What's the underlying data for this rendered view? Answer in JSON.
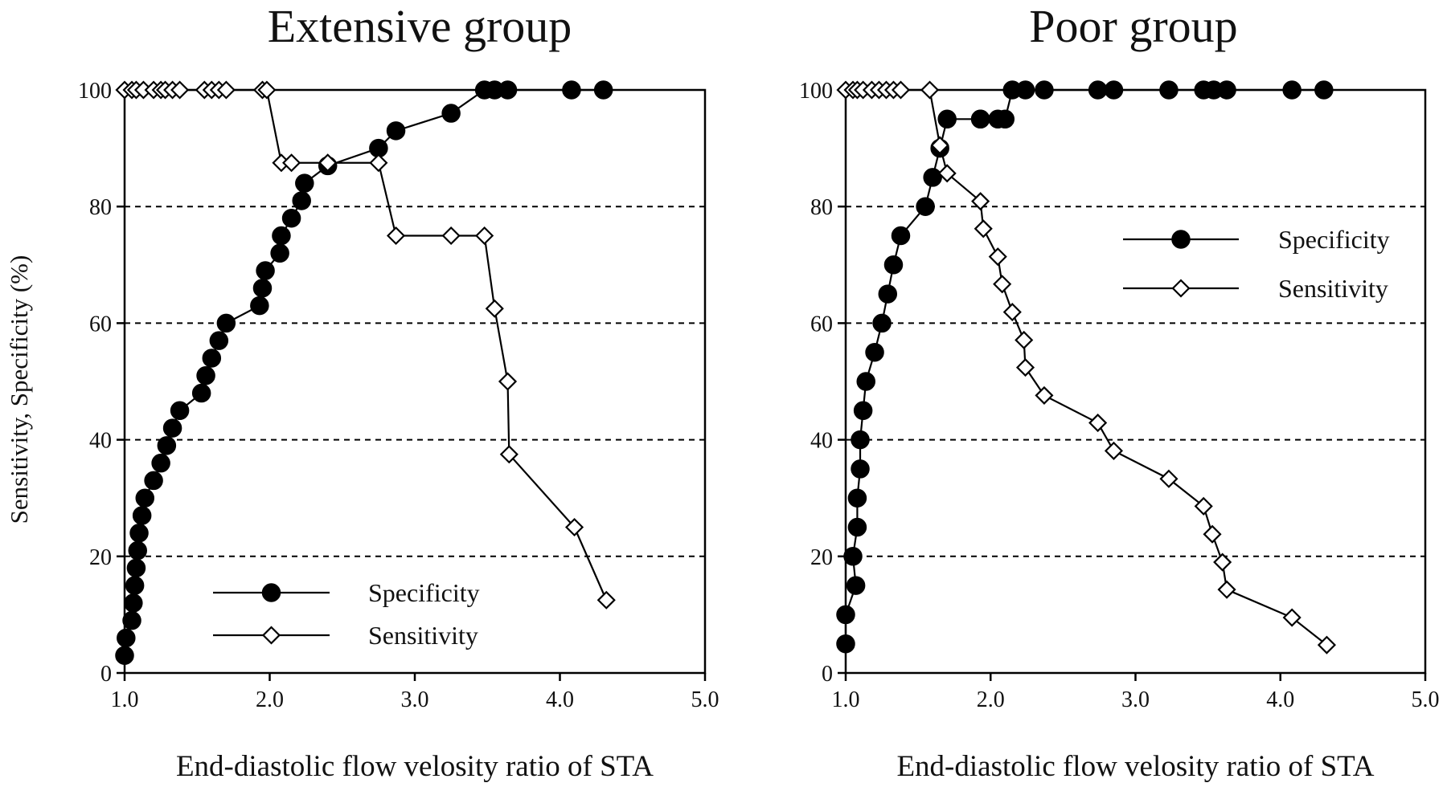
{
  "chart_data": [
    {
      "type": "line",
      "title": "Extensive group",
      "xlabel": "End-diastolic flow velosity ratio of STA",
      "ylabel": "Sensitivity, Specificity (%)",
      "xlim": [
        1.0,
        5.0
      ],
      "ylim": [
        0,
        100
      ],
      "x_ticks": [
        "1.0",
        "2.0",
        "3.0",
        "4.0",
        "5.0"
      ],
      "y_ticks": [
        "0",
        "20",
        "40",
        "60",
        "80",
        "100"
      ],
      "grid": "horizontal dashed at 20, 40, 60, 80",
      "legend": {
        "position": "bottom-center",
        "items": [
          "Specificity",
          "Sensitivity"
        ]
      },
      "series": [
        {
          "name": "Specificity",
          "marker": "filled-circle",
          "x": [
            1.0,
            1.01,
            1.05,
            1.06,
            1.07,
            1.08,
            1.09,
            1.1,
            1.12,
            1.14,
            1.2,
            1.25,
            1.29,
            1.33,
            1.38,
            1.53,
            1.56,
            1.6,
            1.65,
            1.7,
            1.93,
            1.95,
            1.97,
            2.07,
            2.08,
            2.15,
            2.22,
            2.24,
            2.4,
            2.75,
            2.87,
            3.25,
            3.48,
            3.55,
            3.64,
            4.08,
            4.3
          ],
          "y": [
            3,
            6,
            9,
            12,
            15,
            18,
            21,
            24,
            27,
            30,
            33,
            36,
            39,
            42,
            45,
            48,
            51,
            54,
            57,
            60,
            63,
            66,
            69,
            72,
            75,
            78,
            81,
            84,
            87,
            90,
            93,
            96,
            100,
            100,
            100,
            100,
            100
          ]
        },
        {
          "name": "Sensitivity",
          "marker": "open-diamond",
          "x": [
            1.0,
            1.05,
            1.08,
            1.13,
            1.2,
            1.25,
            1.28,
            1.33,
            1.38,
            1.55,
            1.6,
            1.65,
            1.7,
            1.95,
            1.98,
            2.08,
            2.15,
            2.4,
            2.75,
            2.87,
            3.25,
            3.48,
            3.55,
            3.64,
            3.65,
            4.1,
            4.32
          ],
          "y": [
            100,
            100,
            100,
            100,
            100,
            100,
            100,
            100,
            100,
            100,
            100,
            100,
            100,
            100,
            100,
            87.5,
            87.5,
            87.5,
            87.5,
            75,
            75,
            75,
            62.5,
            50,
            37.5,
            25,
            12.5
          ]
        }
      ]
    },
    {
      "type": "line",
      "title": "Poor group",
      "xlabel": "End-diastolic flow velosity ratio of STA",
      "ylabel": "",
      "xlim": [
        1.0,
        5.0
      ],
      "ylim": [
        0,
        100
      ],
      "x_ticks": [
        "1.0",
        "2.0",
        "3.0",
        "4.0",
        "5.0"
      ],
      "y_ticks": [
        "0",
        "20",
        "40",
        "60",
        "80",
        "100"
      ],
      "grid": "horizontal dashed at 20, 40, 60, 80",
      "legend": {
        "position": "upper-right",
        "items": [
          "Specificity",
          "Sensitivity"
        ]
      },
      "series": [
        {
          "name": "Specificity",
          "marker": "filled-circle",
          "x": [
            1.0,
            1.0,
            1.07,
            1.05,
            1.08,
            1.08,
            1.1,
            1.1,
            1.12,
            1.14,
            1.2,
            1.25,
            1.29,
            1.33,
            1.38,
            1.55,
            1.6,
            1.65,
            1.7,
            1.93,
            1.93,
            2.05,
            2.1,
            2.15,
            2.24,
            2.37,
            2.74,
            2.85,
            3.23,
            3.47,
            3.54,
            3.63,
            4.08,
            4.3
          ],
          "y": [
            5,
            10,
            15,
            20,
            25,
            30,
            35,
            40,
            45,
            50,
            55,
            60,
            65,
            70,
            75,
            80,
            85,
            90,
            95,
            95,
            95,
            95,
            95,
            100,
            100,
            100,
            100,
            100,
            100,
            100,
            100,
            100,
            100,
            100
          ]
        },
        {
          "name": "Sensitivity",
          "marker": "open-diamond",
          "x": [
            1.0,
            1.05,
            1.08,
            1.12,
            1.18,
            1.23,
            1.28,
            1.33,
            1.38,
            1.58,
            1.65,
            1.7,
            1.93,
            1.95,
            2.05,
            2.08,
            2.15,
            2.23,
            2.24,
            2.37,
            2.74,
            2.85,
            3.23,
            3.47,
            3.53,
            3.6,
            3.63,
            4.08,
            4.32
          ],
          "y": [
            100,
            100,
            100,
            100,
            100,
            100,
            100,
            100,
            100,
            100,
            90.5,
            85.7,
            80.9,
            76.2,
            71.4,
            66.7,
            61.9,
            57.1,
            52.4,
            47.6,
            42.9,
            38.1,
            33.3,
            28.6,
            23.8,
            19,
            14.3,
            9.5,
            4.8
          ]
        }
      ]
    }
  ]
}
